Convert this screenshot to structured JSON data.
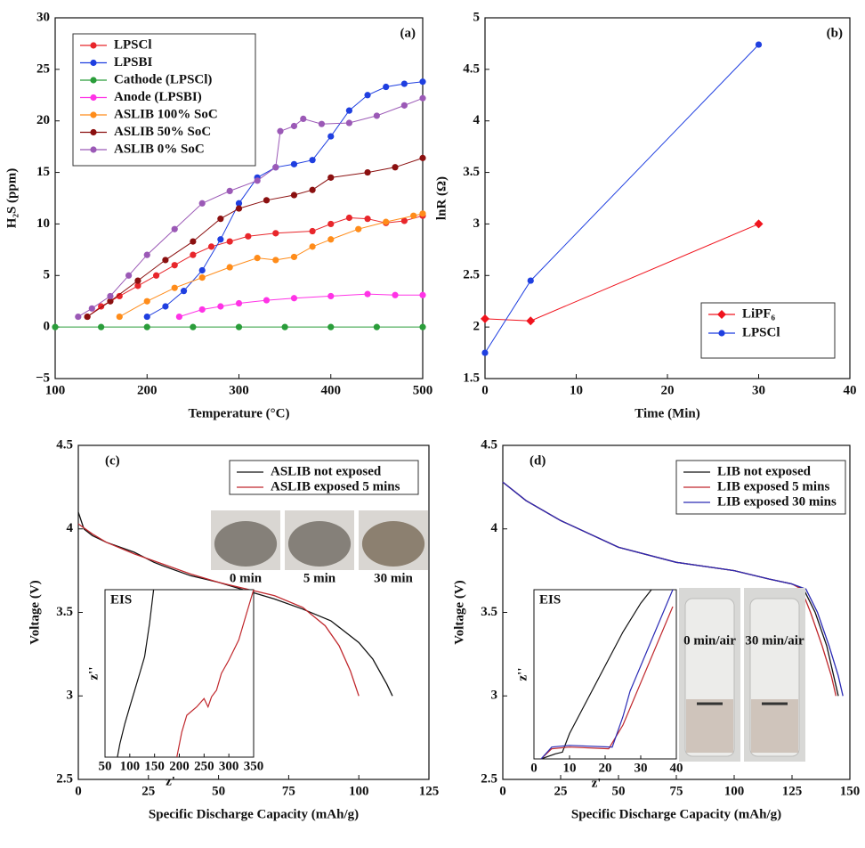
{
  "chart_data": [
    {
      "type": "line",
      "label": "(a)",
      "xlabel": "Temperature (°C)",
      "ylabel": "H₂S (ppm)",
      "xlim": [
        100,
        500
      ],
      "ylim": [
        -5,
        30
      ],
      "xticks": [
        100,
        200,
        300,
        400,
        500
      ],
      "yticks": [
        {
          "value": -5,
          "label": "−5"
        },
        0,
        5,
        10,
        15,
        20,
        25,
        30
      ],
      "legend_loc": "upper left",
      "series": [
        {
          "name": "LPSCl",
          "color": "#e8262b",
          "marker": "circle",
          "x": [
            135,
            150,
            170,
            190,
            210,
            230,
            250,
            270,
            290,
            310,
            340,
            380,
            400,
            420,
            440,
            460,
            480,
            500
          ],
          "values": [
            1,
            2,
            3,
            4,
            5,
            6,
            7,
            7.8,
            8.3,
            8.8,
            9.1,
            9.3,
            10,
            10.6,
            10.5,
            10.1,
            10.3,
            10.8
          ]
        },
        {
          "name": "LPSBI",
          "color": "#1f3fe0",
          "marker": "circle",
          "x": [
            200,
            220,
            240,
            260,
            280,
            300,
            320,
            340,
            360,
            380,
            400,
            420,
            440,
            460,
            480,
            500
          ],
          "values": [
            1,
            2,
            3.5,
            5.5,
            8.5,
            12,
            14.5,
            15.5,
            15.8,
            16.2,
            18.5,
            21,
            22.5,
            23.3,
            23.6,
            23.8
          ]
        },
        {
          "name": "Cathode (LPSCl)",
          "color": "#2a9d3a",
          "marker": "circle",
          "x": [
            100,
            150,
            200,
            250,
            300,
            350,
            400,
            450,
            500
          ],
          "values": [
            0,
            0,
            0,
            0,
            0,
            0,
            0,
            0,
            0
          ]
        },
        {
          "name": "Anode (LPSBI)",
          "color": "#ff33e6",
          "marker": "circle",
          "x": [
            235,
            260,
            280,
            300,
            330,
            360,
            400,
            440,
            470,
            500
          ],
          "values": [
            1,
            1.7,
            2,
            2.3,
            2.6,
            2.8,
            3,
            3.2,
            3.1,
            3.1
          ]
        },
        {
          "name": "ASLIB 100% SoC",
          "color": "#ff8c1a",
          "marker": "circle",
          "x": [
            170,
            200,
            230,
            260,
            290,
            320,
            340,
            360,
            380,
            400,
            430,
            460,
            490,
            500
          ],
          "values": [
            1,
            2.5,
            3.8,
            4.8,
            5.8,
            6.7,
            6.5,
            6.8,
            7.8,
            8.5,
            9.5,
            10.2,
            10.8,
            11
          ]
        },
        {
          "name": "ASLIB 50% SoC",
          "color": "#8b1010",
          "marker": "circle",
          "x": [
            135,
            160,
            190,
            220,
            250,
            280,
            300,
            330,
            360,
            380,
            400,
            440,
            470,
            500
          ],
          "values": [
            1,
            2.5,
            4.5,
            6.5,
            8.3,
            10.5,
            11.5,
            12.3,
            12.8,
            13.3,
            14.5,
            15,
            15.5,
            16.4
          ]
        },
        {
          "name": "ASLIB 0% SoC",
          "color": "#9b59b6",
          "marker": "circle",
          "x": [
            125,
            140,
            160,
            180,
            200,
            230,
            260,
            290,
            320,
            340,
            345,
            360,
            370,
            390,
            420,
            450,
            480,
            500
          ],
          "values": [
            1,
            1.8,
            3,
            5,
            7,
            9.5,
            12,
            13.2,
            14.2,
            15.5,
            19,
            19.5,
            20.2,
            19.7,
            19.8,
            20.5,
            21.5,
            22.2
          ]
        }
      ]
    },
    {
      "type": "line",
      "label": "(b)",
      "xlabel": "Time (Min)",
      "ylabel": "lnR (Ω)",
      "xlim": [
        0,
        40
      ],
      "ylim": [
        1.5,
        5
      ],
      "xticks": [
        0,
        10,
        20,
        30,
        40
      ],
      "yticks": [
        1.5,
        2,
        2.5,
        3,
        3.5,
        4,
        4.5,
        5
      ],
      "legend_loc": "lower right",
      "series": [
        {
          "name": "LiPF₆",
          "color": "#f0141e",
          "marker": "diamond",
          "x": [
            0,
            5,
            30
          ],
          "values": [
            2.08,
            2.06,
            3.0
          ]
        },
        {
          "name": "LPSCl",
          "color": "#1f3fe0",
          "marker": "circle",
          "x": [
            0,
            5,
            30
          ],
          "values": [
            1.75,
            2.45,
            4.74
          ]
        }
      ]
    },
    {
      "type": "line",
      "label": "(c)",
      "xlabel": "Specific Discharge Capacity (mAh/g)",
      "ylabel": "Voltage (V)",
      "xlim": [
        0,
        125
      ],
      "ylim": [
        2.5,
        4.5
      ],
      "xticks": [
        0,
        25,
        50,
        75,
        100,
        125
      ],
      "yticks": [
        2.5,
        3,
        3.5,
        4,
        4.5
      ],
      "legend_loc": "upper right",
      "series": [
        {
          "name": "ASLIB not exposed",
          "color": "#111111",
          "x": [
            0,
            2,
            5,
            10,
            20,
            27,
            30,
            40,
            50,
            60,
            70,
            80,
            90,
            100,
            105,
            110,
            112
          ],
          "values": [
            4.1,
            4.0,
            3.96,
            3.92,
            3.86,
            3.8,
            3.78,
            3.72,
            3.68,
            3.63,
            3.58,
            3.52,
            3.45,
            3.32,
            3.22,
            3.07,
            3.0
          ]
        },
        {
          "name": "ASLIB exposed 5 mins",
          "color": "#c0282d",
          "x": [
            0,
            5,
            10,
            20,
            30,
            40,
            50,
            60,
            70,
            80,
            88,
            93,
            97,
            100
          ],
          "values": [
            4.03,
            3.97,
            3.92,
            3.85,
            3.79,
            3.73,
            3.68,
            3.64,
            3.6,
            3.53,
            3.42,
            3.3,
            3.15,
            3.0
          ]
        }
      ],
      "inset": {
        "title": "EIS",
        "xlabel": "z'",
        "ylabel": "z''",
        "xlim": [
          50,
          350
        ],
        "ylim": [
          0,
          100
        ],
        "xticks": [
          50,
          100,
          150,
          200,
          250,
          300,
          350
        ],
        "series": [
          {
            "color": "#111111",
            "x": [
              75,
              80,
              90,
              100,
              110,
              120,
              130,
              140,
              148
            ],
            "values": [
              0,
              8,
              20,
              30,
              40,
              50,
              60,
              80,
              100
            ]
          },
          {
            "color": "#c0282d",
            "x": [
              195,
              205,
              215,
              235,
              250,
              258,
              265,
              275,
              285,
              300,
              320,
              335,
              350
            ],
            "values": [
              0,
              15,
              25,
              30,
              35,
              30,
              36,
              40,
              50,
              58,
              70,
              85,
              100
            ]
          }
        ]
      },
      "photos": [
        "0 min",
        "5 min",
        "30 min"
      ]
    },
    {
      "type": "line",
      "label": "(d)",
      "xlabel": "Specific Discharge Capacity (mAh/g)",
      "ylabel": "Voltage (V)",
      "xlim": [
        0,
        150
      ],
      "ylim": [
        2.5,
        4.5
      ],
      "xticks": [
        0,
        25,
        50,
        75,
        100,
        125,
        150
      ],
      "yticks": [
        2.5,
        3,
        3.5,
        4,
        4.5
      ],
      "legend_loc": "upper right",
      "series": [
        {
          "name": "LIB not exposed",
          "color": "#111111",
          "x": [
            0,
            10,
            25,
            50,
            75,
            100,
            115,
            125,
            130,
            135,
            140,
            143,
            145
          ],
          "values": [
            4.28,
            4.17,
            4.05,
            3.89,
            3.8,
            3.75,
            3.7,
            3.67,
            3.64,
            3.5,
            3.3,
            3.12,
            3.0
          ]
        },
        {
          "name": "LIB exposed 5 mins",
          "color": "#c0282d",
          "x": [
            0,
            10,
            25,
            50,
            75,
            100,
            115,
            125,
            129,
            133,
            138,
            142,
            144
          ],
          "values": [
            4.28,
            4.17,
            4.05,
            3.89,
            3.8,
            3.75,
            3.7,
            3.67,
            3.64,
            3.5,
            3.3,
            3.12,
            3.0
          ]
        },
        {
          "name": "LIB exposed 30 mins",
          "color": "#2b2bb5",
          "x": [
            0,
            10,
            25,
            50,
            75,
            100,
            115,
            125,
            131,
            136,
            141,
            145,
            147
          ],
          "values": [
            4.28,
            4.17,
            4.05,
            3.89,
            3.8,
            3.75,
            3.7,
            3.67,
            3.64,
            3.5,
            3.3,
            3.12,
            3.0
          ]
        }
      ],
      "inset": {
        "title": "EIS",
        "xlabel": "z'",
        "ylabel": "z''",
        "xlim": [
          0,
          40
        ],
        "ylim": [
          0,
          100
        ],
        "xticks": [
          0,
          10,
          20,
          30,
          40
        ],
        "series": [
          {
            "color": "#111111",
            "x": [
              2,
              6,
              8,
              10,
              15,
              20,
              25,
              30,
              33
            ],
            "values": [
              0,
              3,
              4,
              15,
              35,
              55,
              75,
              92,
              100
            ]
          },
          {
            "color": "#c0282d",
            "x": [
              2,
              5,
              10,
              21,
              25,
              28,
              32,
              36,
              39
            ],
            "values": [
              0,
              6,
              7,
              6,
              20,
              35,
              55,
              75,
              90
            ]
          },
          {
            "color": "#2b2bb5",
            "x": [
              2,
              5,
              10,
              22,
              25,
              27,
              30,
              34,
              39
            ],
            "values": [
              0,
              7,
              8,
              7,
              25,
              40,
              55,
              75,
              100
            ]
          }
        ]
      },
      "photos": [
        "0 min/air",
        "30 min/air"
      ]
    }
  ]
}
